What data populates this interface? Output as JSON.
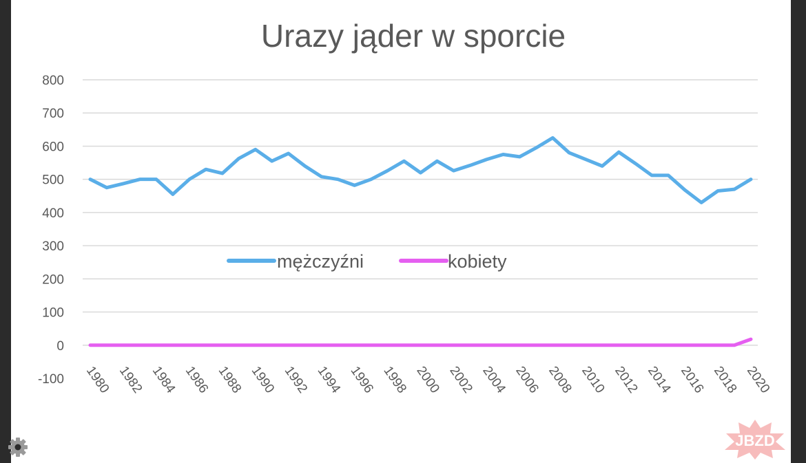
{
  "chart_data": {
    "type": "line",
    "title": "Urazy jąder w sporcie",
    "xlabel": "",
    "ylabel": "",
    "ylim": [
      -100,
      800
    ],
    "yticks": [
      -100,
      0,
      100,
      200,
      300,
      400,
      500,
      600,
      700,
      800
    ],
    "x": [
      1980,
      1981,
      1982,
      1983,
      1984,
      1985,
      1986,
      1987,
      1988,
      1989,
      1990,
      1991,
      1992,
      1993,
      1994,
      1995,
      1996,
      1997,
      1998,
      1999,
      2000,
      2001,
      2002,
      2003,
      2004,
      2005,
      2006,
      2007,
      2008,
      2009,
      2010,
      2011,
      2012,
      2013,
      2014,
      2015,
      2016,
      2017,
      2018,
      2019,
      2020
    ],
    "xtick_labels": [
      "1980",
      "1982",
      "1984",
      "1986",
      "1988",
      "1990",
      "1992",
      "1994",
      "1996",
      "1998",
      "2000",
      "2002",
      "2004",
      "2006",
      "2008",
      "2010",
      "2012",
      "2014",
      "2016",
      "2018",
      "2020"
    ],
    "grid": true,
    "legend_position": "center",
    "series": [
      {
        "name": "mężczyźni",
        "color": "#5aaee8",
        "values": [
          500,
          475,
          487,
          500,
          500,
          455,
          500,
          530,
          518,
          563,
          590,
          555,
          578,
          540,
          508,
          500,
          482,
          500,
          526,
          555,
          520,
          555,
          526,
          542,
          560,
          575,
          568,
          595,
          625,
          580,
          560,
          540,
          582,
          548,
          512,
          512,
          468,
          430,
          465,
          470,
          500
        ]
      },
      {
        "name": "kobiety",
        "color": "#e55ff0",
        "values": [
          0,
          0,
          0,
          0,
          0,
          0,
          0,
          0,
          0,
          0,
          0,
          0,
          0,
          0,
          0,
          0,
          0,
          0,
          0,
          0,
          0,
          0,
          0,
          0,
          0,
          0,
          0,
          0,
          0,
          0,
          0,
          0,
          0,
          0,
          0,
          0,
          0,
          0,
          0,
          0,
          18
        ]
      }
    ]
  },
  "watermark": {
    "text": "JBZD"
  },
  "icons": {
    "settings": "gear-icon"
  }
}
